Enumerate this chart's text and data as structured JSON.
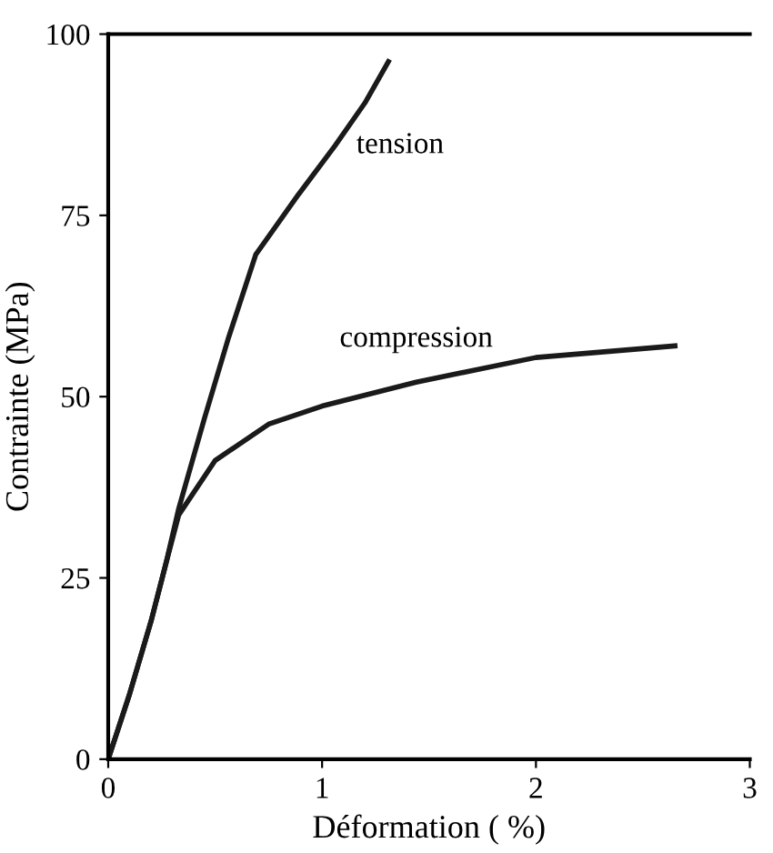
{
  "chart_data": {
    "type": "line",
    "xlabel": "Déformation ( %)",
    "ylabel": "Contrainte (MPa)",
    "xlim": [
      0,
      3
    ],
    "ylim": [
      0,
      100
    ],
    "xticks": [
      0,
      1,
      2,
      3
    ],
    "yticks": [
      0,
      25,
      50,
      75,
      100
    ],
    "grid": false,
    "legend": false,
    "marker": "none",
    "line_style": "solid",
    "series": [
      {
        "name": "tension",
        "color": "#1a1a1a",
        "x": [
          0,
          0.1,
          0.2,
          0.27,
          0.33,
          0.45,
          0.56,
          0.69,
          0.89,
          1.06,
          1.2,
          1.31
        ],
        "values": [
          0,
          9,
          19,
          27,
          34.6,
          47,
          57.9,
          69.6,
          77.9,
          84.6,
          90.5,
          96.2
        ]
      },
      {
        "name": "compression",
        "color": "#1a1a1a",
        "x": [
          0,
          0.1,
          0.2,
          0.27,
          0.33,
          0.5,
          0.75,
          1.0,
          1.44,
          2.0,
          2.65
        ],
        "values": [
          0,
          9,
          19,
          27,
          33.7,
          41.2,
          46.2,
          48.7,
          52,
          55.4,
          57
        ]
      }
    ]
  }
}
